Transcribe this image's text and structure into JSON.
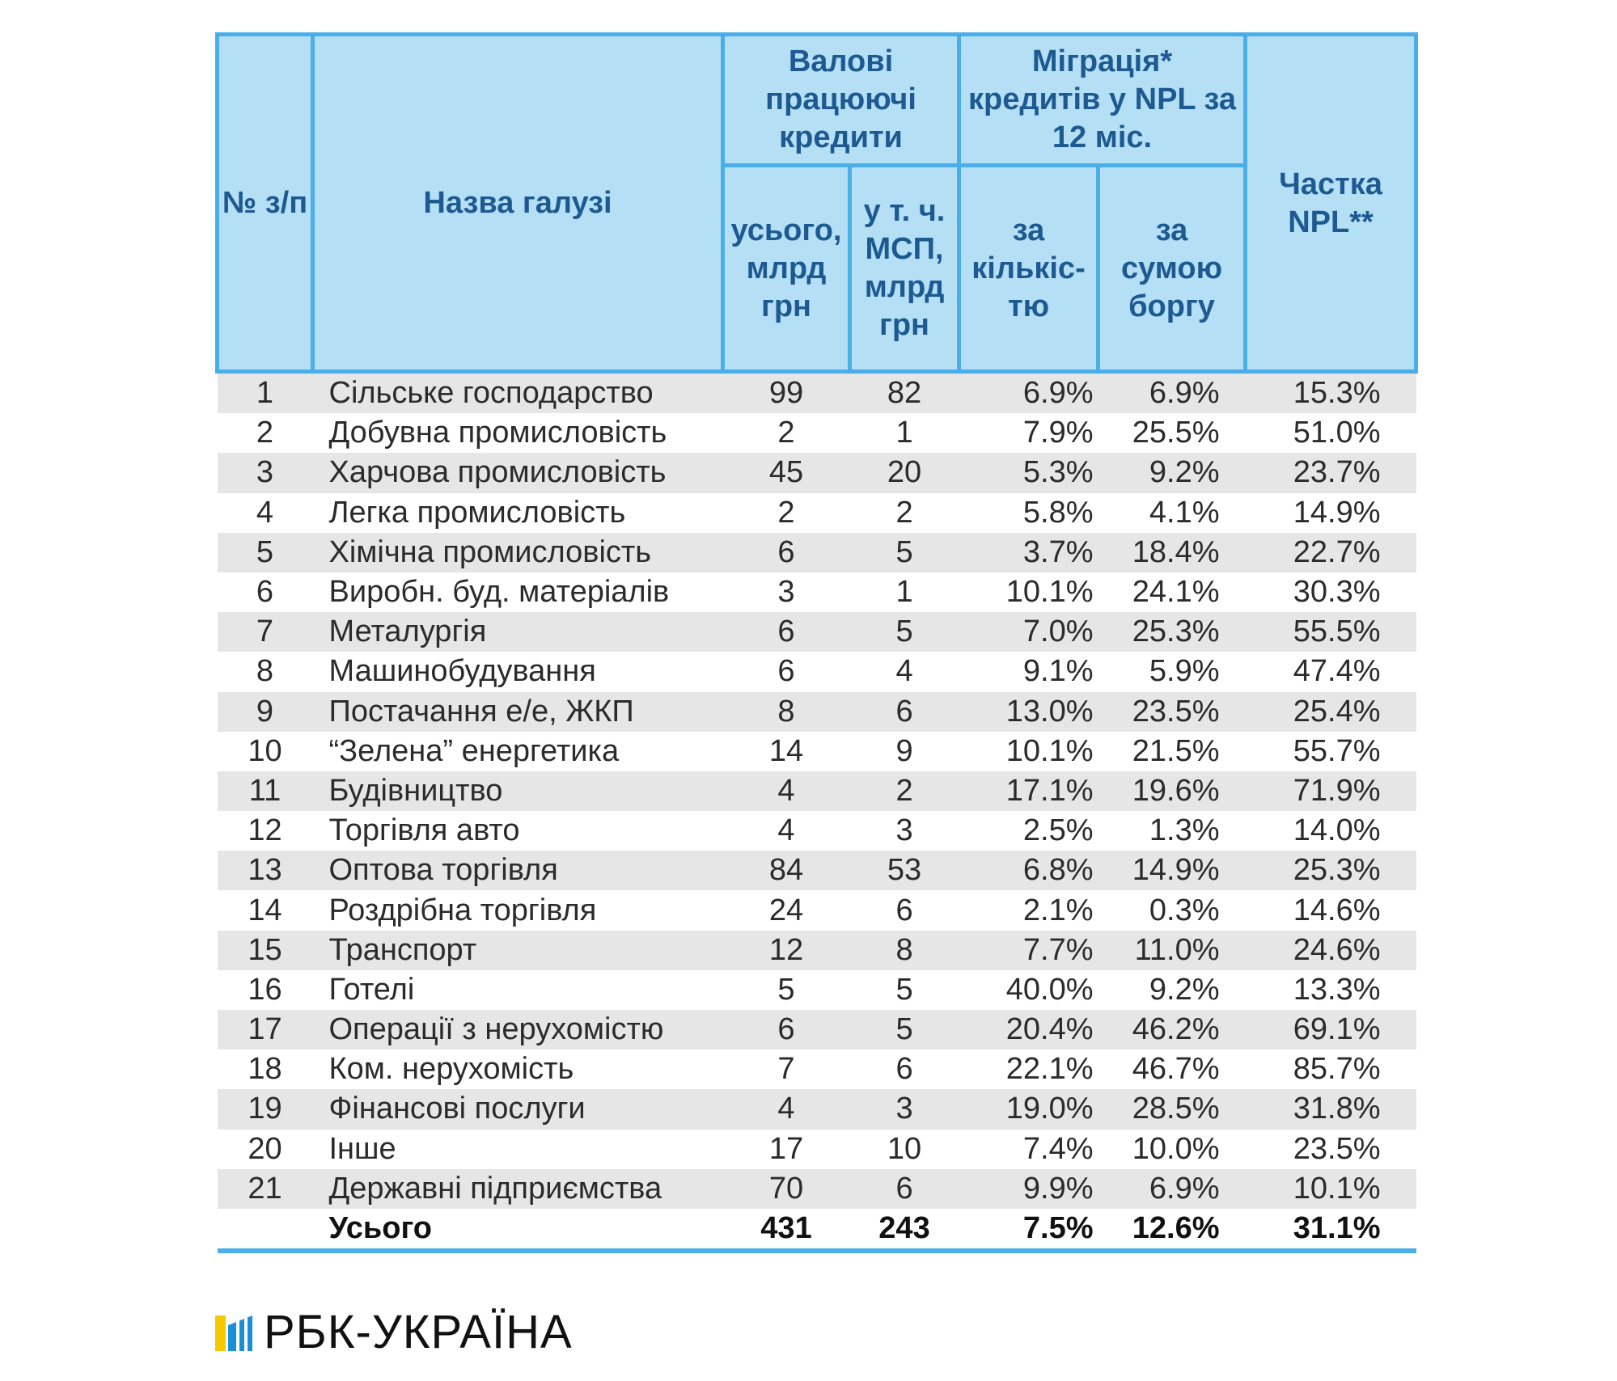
{
  "header": {
    "num": "№ з/п",
    "name": "Назва галузі",
    "gross_group": "Валові працюючі кредити",
    "migration_group": "Міграція* кредитів у NPL за 12 міс.",
    "npl_share": "Частка NPL**",
    "total_col": "усього, млрд грн",
    "msp_col": "у т. ч. МСП, млрд грн",
    "by_count": "за кількіс-тю",
    "by_amount": "за сумою боргу"
  },
  "rows": [
    {
      "num": "1",
      "name": "Сільське господарство",
      "total": "99",
      "msp": "82",
      "count": "6.9%",
      "amount": "6.9%",
      "npl": "15.3%"
    },
    {
      "num": "2",
      "name": "Добувна промисловість",
      "total": "2",
      "msp": "1",
      "count": "7.9%",
      "amount": "25.5%",
      "npl": "51.0%"
    },
    {
      "num": "3",
      "name": "Харчова промисловість",
      "total": "45",
      "msp": "20",
      "count": "5.3%",
      "amount": "9.2%",
      "npl": "23.7%"
    },
    {
      "num": "4",
      "name": "Легка промисловість",
      "total": "2",
      "msp": "2",
      "count": "5.8%",
      "amount": "4.1%",
      "npl": "14.9%"
    },
    {
      "num": "5",
      "name": "Хімічна промисловість",
      "total": "6",
      "msp": "5",
      "count": "3.7%",
      "amount": "18.4%",
      "npl": "22.7%"
    },
    {
      "num": "6",
      "name": "Виробн. буд. матеріалів",
      "total": "3",
      "msp": "1",
      "count": "10.1%",
      "amount": "24.1%",
      "npl": "30.3%"
    },
    {
      "num": "7",
      "name": "Металургія",
      "total": "6",
      "msp": "5",
      "count": "7.0%",
      "amount": "25.3%",
      "npl": "55.5%"
    },
    {
      "num": "8",
      "name": "Машинобудування",
      "total": "6",
      "msp": "4",
      "count": "9.1%",
      "amount": "5.9%",
      "npl": "47.4%"
    },
    {
      "num": "9",
      "name": "Постачання е/е, ЖКП",
      "total": "8",
      "msp": "6",
      "count": "13.0%",
      "amount": "23.5%",
      "npl": "25.4%"
    },
    {
      "num": "10",
      "name": "“Зелена” енергетика",
      "total": "14",
      "msp": "9",
      "count": "10.1%",
      "amount": "21.5%",
      "npl": "55.7%"
    },
    {
      "num": "11",
      "name": "Будівництво",
      "total": "4",
      "msp": "2",
      "count": "17.1%",
      "amount": "19.6%",
      "npl": "71.9%"
    },
    {
      "num": "12",
      "name": "Торгівля авто",
      "total": "4",
      "msp": "3",
      "count": "2.5%",
      "amount": "1.3%",
      "npl": "14.0%"
    },
    {
      "num": "13",
      "name": "Оптова торгівля",
      "total": "84",
      "msp": "53",
      "count": "6.8%",
      "amount": "14.9%",
      "npl": "25.3%"
    },
    {
      "num": "14",
      "name": "Роздрібна торгівля",
      "total": "24",
      "msp": "6",
      "count": "2.1%",
      "amount": "0.3%",
      "npl": "14.6%"
    },
    {
      "num": "15",
      "name": "Транспорт",
      "total": "12",
      "msp": "8",
      "count": "7.7%",
      "amount": "11.0%",
      "npl": "24.6%"
    },
    {
      "num": "16",
      "name": "Готелі",
      "total": "5",
      "msp": "5",
      "count": "40.0%",
      "amount": "9.2%",
      "npl": "13.3%"
    },
    {
      "num": "17",
      "name": "Операції з нерухомістю",
      "total": "6",
      "msp": "5",
      "count": "20.4%",
      "amount": "46.2%",
      "npl": "69.1%"
    },
    {
      "num": "18",
      "name": "Ком. нерухомість",
      "total": "7",
      "msp": "6",
      "count": "22.1%",
      "amount": "46.7%",
      "npl": "85.7%"
    },
    {
      "num": "19",
      "name": "Фінансові послуги",
      "total": "4",
      "msp": "3",
      "count": "19.0%",
      "amount": "28.5%",
      "npl": "31.8%"
    },
    {
      "num": "20",
      "name": "Інше",
      "total": "17",
      "msp": "10",
      "count": "7.4%",
      "amount": "10.0%",
      "npl": "23.5%"
    },
    {
      "num": "21",
      "name": "Державні підприємства",
      "total": "70",
      "msp": "6",
      "count": "9.9%",
      "amount": "6.9%",
      "npl": "10.1%"
    }
  ],
  "total_row": {
    "name": "Усього",
    "total": "431",
    "msp": "243",
    "count": "7.5%",
    "amount": "12.6%",
    "npl": "31.1%"
  },
  "brand": {
    "name": "РБК-УКРАЇНА",
    "colors": {
      "yellow": "#f7c800",
      "blue": "#1a8fd6",
      "header_bg": "#b5dff5",
      "header_border": "#4aaee8",
      "header_text": "#1e5a92"
    }
  }
}
